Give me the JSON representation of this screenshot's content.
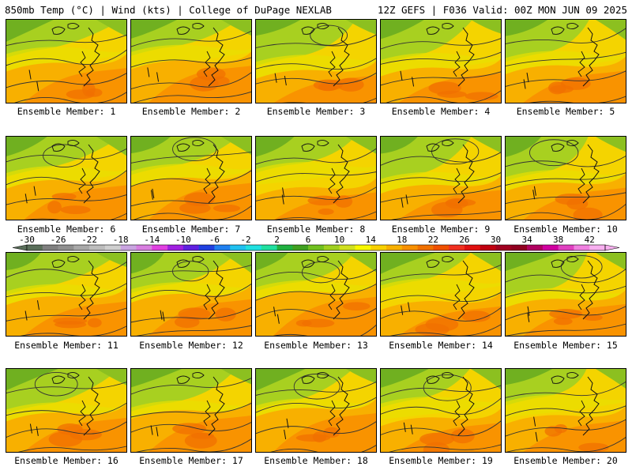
{
  "header": {
    "left": "850mb Temp (°C) | Wind (kts) | College of DuPage NEXLAB",
    "right": "12Z GEFS | F036 Valid: 00Z MON JUN 09 2025"
  },
  "panels": [
    {
      "label": "Ensemble Member: 1"
    },
    {
      "label": "Ensemble Member: 2"
    },
    {
      "label": "Ensemble Member: 3"
    },
    {
      "label": "Ensemble Member: 4"
    },
    {
      "label": "Ensemble Member: 5"
    },
    {
      "label": "Ensemble Member: 6"
    },
    {
      "label": "Ensemble Member: 7"
    },
    {
      "label": "Ensemble Member: 8"
    },
    {
      "label": "Ensemble Member: 9"
    },
    {
      "label": "Ensemble Member: 10"
    },
    {
      "label": "Ensemble Member: 11"
    },
    {
      "label": "Ensemble Member: 12"
    },
    {
      "label": "Ensemble Member: 13"
    },
    {
      "label": "Ensemble Member: 14"
    },
    {
      "label": "Ensemble Member: 15"
    },
    {
      "label": "Ensemble Member: 16"
    },
    {
      "label": "Ensemble Member: 17"
    },
    {
      "label": "Ensemble Member: 18"
    },
    {
      "label": "Ensemble Member: 19"
    },
    {
      "label": "Ensemble Member: 20"
    }
  ],
  "colorbar": {
    "tick_labels": [
      "-30",
      "-26",
      "-22",
      "-18",
      "-14",
      "-10",
      "-6",
      "-2",
      "2",
      "6",
      "10",
      "14",
      "18",
      "22",
      "26",
      "30",
      "34",
      "38",
      "42"
    ],
    "colors": [
      "#5a6e5a",
      "#7f7f7f",
      "#909090",
      "#a8a8a8",
      "#bcbcbc",
      "#cfcfcf",
      "#c9a4e0",
      "#d87ee0",
      "#e040e0",
      "#a020e0",
      "#6020e0",
      "#2040e0",
      "#2080f0",
      "#20c0f0",
      "#20e0e0",
      "#20e0a0",
      "#20b040",
      "#40a020",
      "#70c020",
      "#a0d020",
      "#d0e020",
      "#f8f800",
      "#f8d000",
      "#f8b000",
      "#f89000",
      "#f07000",
      "#f05000",
      "#f03020",
      "#e01010",
      "#c00010",
      "#a00020",
      "#900020",
      "#b00060",
      "#d000a0",
      "#e040c0",
      "#f080e0",
      "#f8b0f0"
    ]
  }
}
